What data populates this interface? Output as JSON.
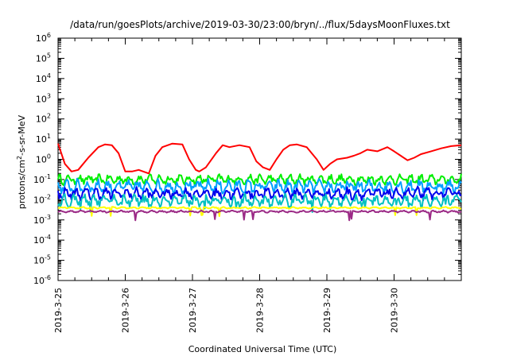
{
  "chart_data": {
    "type": "line",
    "title": "/data/run/goesPlots/archive/2019-03-30/23:00/bryn/../flux/5daysMoonFluxes.txt",
    "xlabel": "Coordinated Universal Time (UTC)",
    "ylabel_parts": [
      "protons/cm",
      "2",
      "-s-sr-MeV"
    ],
    "yscale": "log",
    "ylim": [
      1e-06,
      1000000.0
    ],
    "xlim": [
      0,
      6.0
    ],
    "grid": false,
    "x_ticks": [
      {
        "value": 0,
        "label": "2019-3-25"
      },
      {
        "value": 1,
        "label": "2019-3-26"
      },
      {
        "value": 2,
        "label": "2019-3-27"
      },
      {
        "value": 3,
        "label": "2019-3-28"
      },
      {
        "value": 4,
        "label": "2019-3-29"
      },
      {
        "value": 5,
        "label": "2019-3-30"
      }
    ],
    "y_ticks": [
      {
        "value": 1e-06,
        "base": "10",
        "exp": "-6"
      },
      {
        "value": 1e-05,
        "base": "10",
        "exp": "-5"
      },
      {
        "value": 0.0001,
        "base": "10",
        "exp": "-4"
      },
      {
        "value": 0.001,
        "base": "10",
        "exp": "-3"
      },
      {
        "value": 0.01,
        "base": "10",
        "exp": "-2"
      },
      {
        "value": 0.1,
        "base": "10",
        "exp": "-1"
      },
      {
        "value": 1,
        "base": "10",
        "exp": "0"
      },
      {
        "value": 10,
        "base": "10",
        "exp": "1"
      },
      {
        "value": 100,
        "base": "10",
        "exp": "2"
      },
      {
        "value": 1000,
        "base": "10",
        "exp": "3"
      },
      {
        "value": 10000,
        "base": "10",
        "exp": "4"
      },
      {
        "value": 100000,
        "base": "10",
        "exp": "5"
      },
      {
        "value": 1000000,
        "base": "10",
        "exp": "6"
      }
    ],
    "series": [
      {
        "color": "#ff0000",
        "x": [
          0,
          0.1,
          0.2,
          0.3,
          0.45,
          0.6,
          0.7,
          0.8,
          0.9,
          1.0,
          1.1,
          1.2,
          1.35,
          1.45,
          1.55,
          1.7,
          1.85,
          1.95,
          2.05,
          2.1,
          2.2,
          2.35,
          2.45,
          2.55,
          2.7,
          2.85,
          2.95,
          3.05,
          3.15,
          3.25,
          3.35,
          3.45,
          3.55,
          3.7,
          3.85,
          3.95,
          4.05,
          4.15,
          4.3,
          4.4,
          4.5,
          4.6,
          4.75,
          4.9,
          5.0,
          5.1,
          5.2,
          5.3,
          5.4,
          5.55,
          5.7,
          5.85,
          6.0
        ],
        "y": [
          6,
          0.6,
          0.25,
          0.3,
          1.2,
          4,
          5.5,
          5,
          2,
          0.25,
          0.25,
          0.3,
          0.2,
          1.5,
          4,
          6,
          5.5,
          1,
          0.3,
          0.25,
          0.4,
          2,
          5,
          4,
          5,
          4,
          0.8,
          0.4,
          0.3,
          1,
          3,
          5,
          5.5,
          4,
          1,
          0.3,
          0.6,
          1,
          1.2,
          1.5,
          2,
          3,
          2.5,
          4,
          2.5,
          1.5,
          0.9,
          1.2,
          1.8,
          2.5,
          3.5,
          4.5,
          5
        ]
      },
      {
        "color": "#00ee00",
        "base": 0.1,
        "amp": 0.3
      },
      {
        "color": "#00a0ff",
        "base": 0.045,
        "amp": 0.4
      },
      {
        "color": "#0000ee",
        "base": 0.02,
        "amp": 0.35
      },
      {
        "color": "#00c0c0",
        "base": 0.009,
        "amp": 0.35
      },
      {
        "color": "#ffff00",
        "base": 0.004,
        "amp": 0.05
      },
      {
        "color": "#9b2a86",
        "base": 0.0026,
        "amp": 0.06
      }
    ]
  }
}
